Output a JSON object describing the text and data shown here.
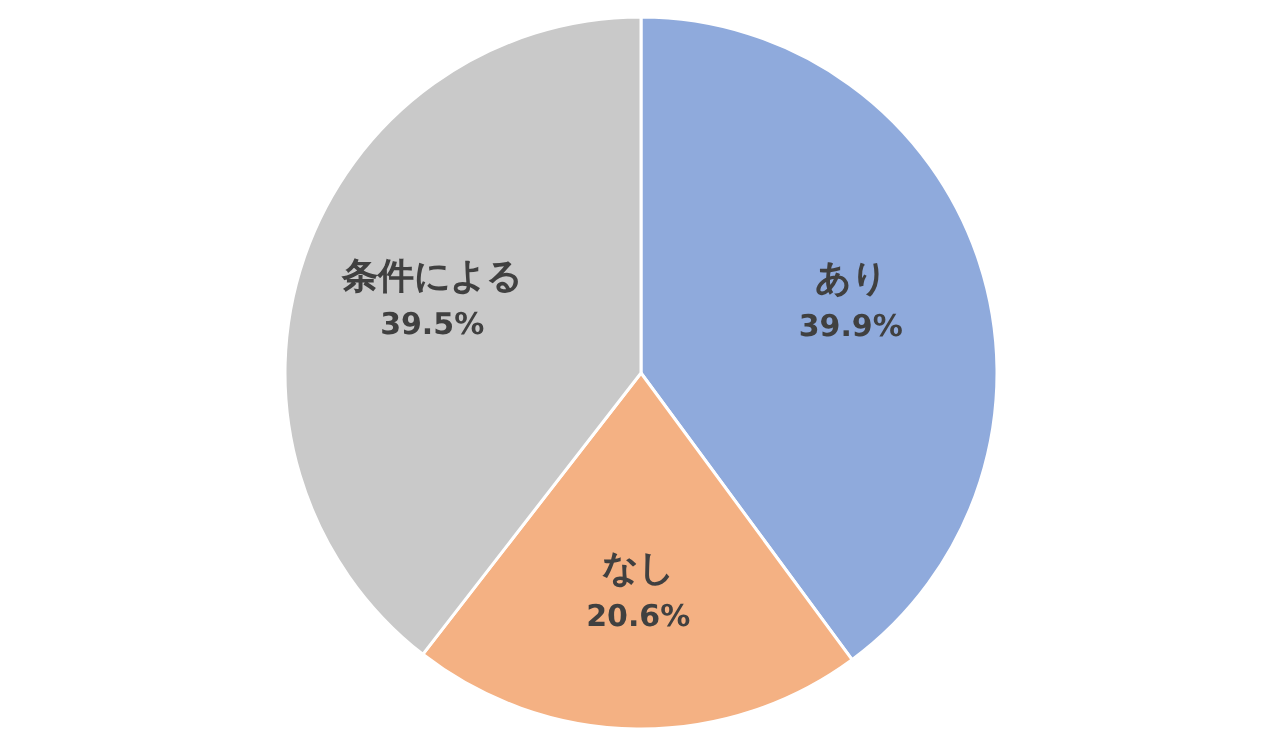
{
  "chart_data": {
    "type": "pie",
    "categories": [
      "あり",
      "なし",
      "条件による"
    ],
    "values": [
      39.9,
      20.6,
      39.5
    ],
    "colors": [
      "#8faadc",
      "#f4b183",
      "#c9c9c9"
    ],
    "value_labels": [
      "39.9%",
      "20.6%",
      "39.5%"
    ]
  }
}
